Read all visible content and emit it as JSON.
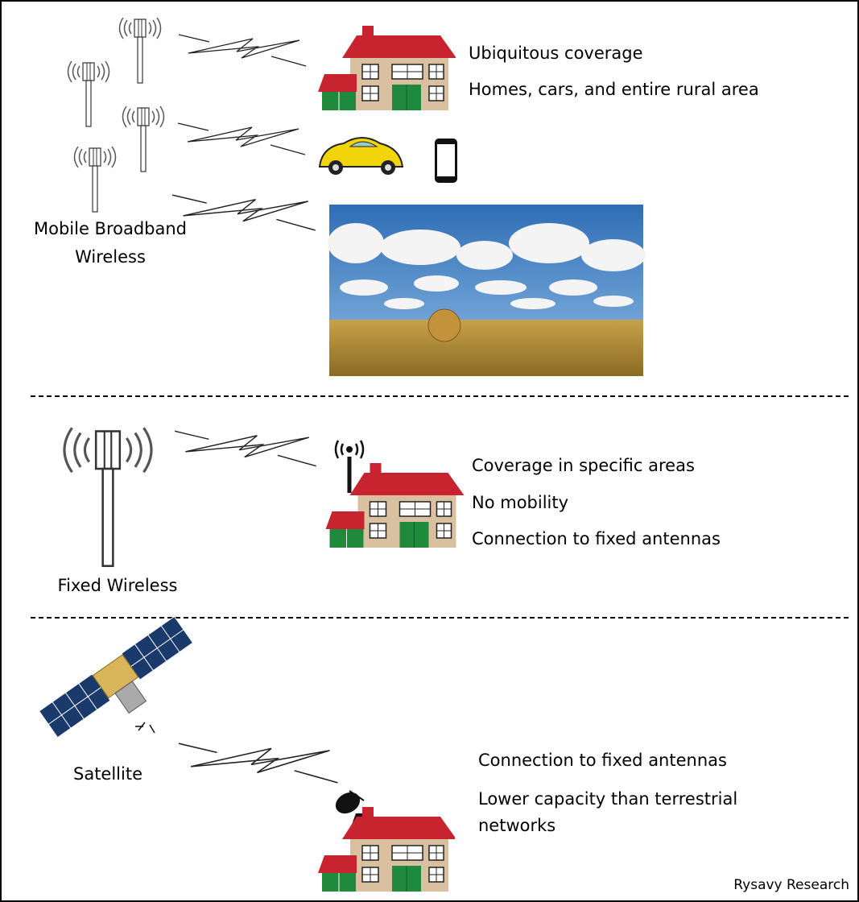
{
  "mobile": {
    "label_lines": [
      "Mobile Broadband",
      "Wireless"
    ],
    "points": [
      "Ubiquitous coverage",
      "Homes, cars, and entire rural area"
    ]
  },
  "fixed": {
    "label": "Fixed Wireless",
    "points": [
      "Coverage in specific areas",
      "No mobility",
      "Connection to fixed antennas"
    ]
  },
  "satellite": {
    "label": "Satellite",
    "points": [
      "Connection to fixed antennas",
      "Lower capacity than terrestrial networks"
    ]
  },
  "credit": "Rysavy Research"
}
